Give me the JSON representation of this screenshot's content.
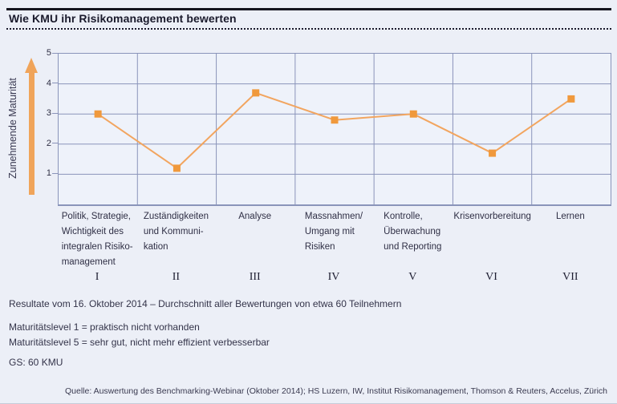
{
  "header": {
    "title": "Wie KMU ihr Risikomanagement bewerten"
  },
  "chart_data": {
    "type": "line",
    "title": "Wie KMU ihr Risikomanagement bewerten",
    "xlabel": "",
    "ylabel": "Zunehmende Maturität",
    "ylim": [
      0,
      5
    ],
    "yticks": [
      1,
      2,
      3,
      4,
      5
    ],
    "grid": true,
    "legend_position": "none",
    "marker": "square",
    "categories": [
      "Politik, Strategie, Wichtigkeit des integralen Risikomanagement",
      "Zuständigkeiten und Kommunikation",
      "Analyse",
      "Massnahmen/ Umgang mit Risiken",
      "Kontrolle, Überwachung und Reporting",
      "Krisenvorbereitung",
      "Lernen"
    ],
    "category_numerals": [
      "I",
      "II",
      "III",
      "IV",
      "V",
      "VI",
      "VII"
    ],
    "x_label_lines": [
      [
        "Politik, Strategie,",
        "Wichtigkeit des",
        "integralen Risiko-",
        "management"
      ],
      [
        "Zuständigkeiten",
        "und Kommuni-",
        "kation"
      ],
      [
        "Analyse"
      ],
      [
        "Massnahmen/",
        "Umgang mit",
        "Risiken"
      ],
      [
        "Kontrolle,",
        "Überwachung",
        "und Reporting"
      ],
      [
        "Krisenvorbereitung"
      ],
      [
        "Lernen"
      ]
    ],
    "values": [
      3.0,
      1.2,
      3.7,
      2.8,
      3.0,
      1.7,
      3.5
    ],
    "colors": {
      "line": "#F2A55F",
      "marker": "#F0993C",
      "grid": "#8A94BA",
      "arrow": "#F0A45A",
      "plot_background": "#EEF2FA",
      "page_background": "#ECEFF7",
      "axis_text": "#2F2F45"
    }
  },
  "notes": {
    "resultate": "Resultate vom 16. Oktober 2014 – Durchschnitt aller Bewertungen von etwa 60 Teilnehmern",
    "level1": "Maturitätslevel 1 = praktisch nicht vorhanden",
    "level5": "Maturitätslevel 5 = sehr gut, nicht mehr effizient verbesserbar",
    "gs": "GS: 60 KMU",
    "quelle": "Quelle: Auswertung des Benchmarking-Webinar (Oktober 2014); HS Luzern, IW, Institut Risikomanagement, Thomson & Reuters, Accelus, Zürich"
  }
}
